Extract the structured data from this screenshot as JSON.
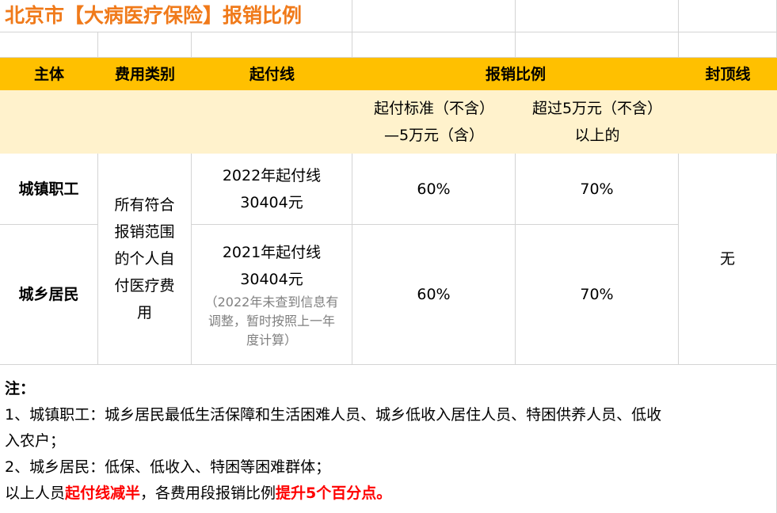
{
  "title": "北京市【大病医疗保险】报销比例",
  "headers": {
    "subject": "主体",
    "category": "费用类别",
    "threshold": "起付线",
    "ratio": "报销比例",
    "cap": "封顶线"
  },
  "subheaders": {
    "ratio_low_line1": "起付标准（不含）",
    "ratio_low_line2": "—5万元（含）",
    "ratio_high_line1": "超过5万元（不含）",
    "ratio_high_line2": "以上的"
  },
  "rows": [
    {
      "subject": "城镇职工",
      "threshold_line1": "2022年起付线",
      "threshold_line2": "30404元",
      "ratio_low": "60%",
      "ratio_high": "70%"
    },
    {
      "subject": "城乡居民",
      "threshold_line1": "2021年起付线",
      "threshold_line2": "30404元",
      "threshold_note_line1": "（2022年未查到信息有",
      "threshold_note_line2": "调整，暂时按照上一年",
      "threshold_note_line3": "度计算）",
      "ratio_low": "60%",
      "ratio_high": "70%"
    }
  ],
  "category_lines": [
    "所有符合",
    "报销范围",
    "的个人自",
    "付医疗费",
    "用"
  ],
  "cap_value": "无",
  "notes": {
    "heading": "注：",
    "line1": "1、城镇职工：城乡居民最低生活保障和生活困难人员、城乡低收入居住人员、特困供养人员、低收",
    "line2": "入农户；",
    "line3": "2、城乡居民：低保、低收入、特困等困难群体；",
    "line4_prefix": "以上人员",
    "line4_red1": "起付线减半",
    "line4_mid": "，各费用段报销比例",
    "line4_red2": "提升5个百分点。"
  },
  "colors": {
    "title": "#f07a1a",
    "header_bg": "#ffc000",
    "subheader_bg": "#fff2cc",
    "highlight": "#ff0000",
    "gridline": "#d4d4d4"
  }
}
